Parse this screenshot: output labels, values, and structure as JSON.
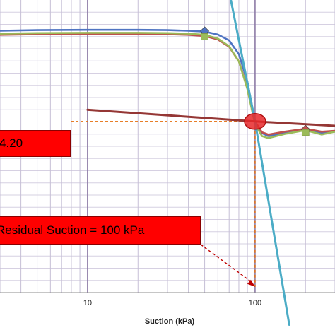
{
  "chart_data": {
    "type": "line",
    "title": "",
    "xlabel": "Suction (kPa)",
    "ylabel": "",
    "x_scale": "log",
    "xlim": [
      3,
      300
    ],
    "ylim": [
      0,
      1
    ],
    "x_ticks": [
      10,
      100
    ],
    "x_tick_labels": [
      "10",
      "100"
    ],
    "grid": true,
    "legend": "none",
    "series": [
      {
        "color": "#4f74c2",
        "x": [
          3,
          5,
          10,
          20,
          30,
          40,
          50,
          60,
          70,
          80,
          90,
          100,
          110,
          120,
          150,
          200,
          250,
          300
        ],
        "y": [
          0.895,
          0.897,
          0.898,
          0.898,
          0.897,
          0.895,
          0.892,
          0.882,
          0.862,
          0.815,
          0.72,
          0.585,
          0.545,
          0.535,
          0.545,
          0.555,
          0.545,
          0.55
        ]
      },
      {
        "color": "#c0504d",
        "x": [
          3,
          5,
          10,
          20,
          30,
          40,
          50,
          60,
          70,
          80,
          90,
          100,
          110,
          120,
          150,
          200,
          250,
          300
        ],
        "y": [
          0.881,
          0.883,
          0.884,
          0.884,
          0.883,
          0.881,
          0.877,
          0.865,
          0.84,
          0.79,
          0.7,
          0.585,
          0.548,
          0.54,
          0.55,
          0.56,
          0.55,
          0.553
        ]
      },
      {
        "color": "#9bbb59",
        "x": [
          3,
          5,
          10,
          20,
          30,
          40,
          50,
          60,
          70,
          80,
          90,
          100,
          110,
          120,
          150,
          200,
          250,
          300
        ],
        "y": [
          0.885,
          0.887,
          0.888,
          0.888,
          0.887,
          0.885,
          0.881,
          0.868,
          0.842,
          0.79,
          0.695,
          0.575,
          0.535,
          0.528,
          0.542,
          0.555,
          0.54,
          0.55
        ]
      },
      {
        "color": "#4bacc6",
        "x": [
          70,
          100,
          160
        ],
        "y": [
          1.03,
          0.585,
          -0.11
        ]
      },
      {
        "color": "#953735",
        "x": [
          10,
          100,
          300
        ],
        "y": [
          0.625,
          0.585,
          0.57
        ]
      }
    ],
    "markers": [
      {
        "x": 50,
        "y": 0.894,
        "shape": "diamond",
        "color": "#4f74c2"
      },
      {
        "x": 50,
        "y": 0.881,
        "shape": "square",
        "color": "#9bbb59"
      },
      {
        "x": 100,
        "y": 0.585,
        "shape": "ellipse",
        "color": "#e8282a"
      },
      {
        "x": 200,
        "y": 0.558,
        "shape": "diamond",
        "color": "#c0504d"
      },
      {
        "x": 200,
        "y": 0.553,
        "shape": "square",
        "color": "#9bbb59"
      }
    ],
    "annotations": [
      {
        "text": "4.20",
        "target_x": 100,
        "target_y": 0.585
      },
      {
        "text": "Residual Suction = 100 kPa",
        "target_x": 100,
        "target_y": 0.02
      }
    ],
    "colors": {
      "grid_major": "#8c7aa6",
      "grid_minor": "#c6bfd6",
      "grid_horizontal": "#d6d0e2",
      "box": "#ff0000",
      "dashed": "#e46c0a",
      "arrow": "#c00000"
    }
  }
}
